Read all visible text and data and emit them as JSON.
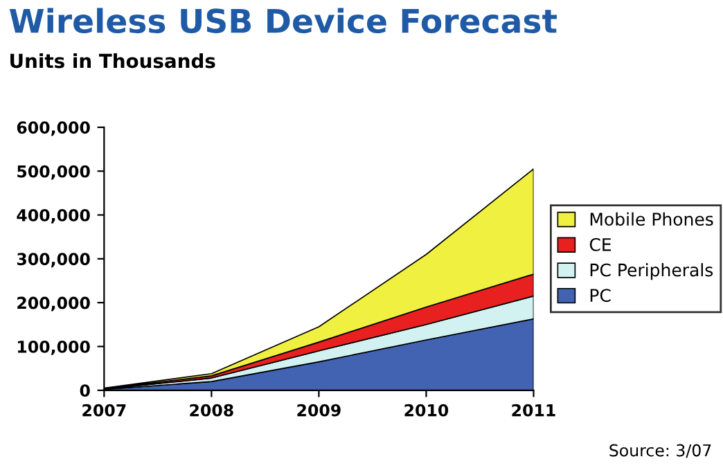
{
  "chart_data": {
    "type": "area",
    "stacked": true,
    "title": "Wireless USB Device Forecast",
    "subtitle": "Units in Thousands",
    "x": [
      2007,
      2008,
      2009,
      2010,
      2011
    ],
    "xlim": [
      2007,
      2011
    ],
    "xticks": [
      2007,
      2008,
      2009,
      2010,
      2011
    ],
    "ylim": [
      0,
      600000
    ],
    "yticks": [
      {
        "value": 0,
        "label": "0"
      },
      {
        "value": 100000,
        "label": "100,000"
      },
      {
        "value": 200000,
        "label": "200,000"
      },
      {
        "value": 300000,
        "label": "300,000"
      },
      {
        "value": 400000,
        "label": "400,000"
      },
      {
        "value": 500000,
        "label": "500,000"
      },
      {
        "value": 600000,
        "label": "600,000"
      }
    ],
    "series": [
      {
        "name": "PC",
        "color": "#4262b2",
        "values": [
          2000,
          20000,
          65000,
          115000,
          163000
        ]
      },
      {
        "name": "PC Peripherals",
        "color": "#d2f2f2",
        "values": [
          1000,
          8000,
          25000,
          35000,
          52000
        ]
      },
      {
        "name": "CE",
        "color": "#e82020",
        "values": [
          1000,
          5000,
          20000,
          40000,
          50000
        ]
      },
      {
        "name": "Mobile Phones",
        "color": "#f0f040",
        "values": [
          1000,
          5000,
          35000,
          120000,
          240000
        ]
      }
    ],
    "legend": "right",
    "grid": false,
    "annotations": [
      "Source: 3/07"
    ]
  }
}
